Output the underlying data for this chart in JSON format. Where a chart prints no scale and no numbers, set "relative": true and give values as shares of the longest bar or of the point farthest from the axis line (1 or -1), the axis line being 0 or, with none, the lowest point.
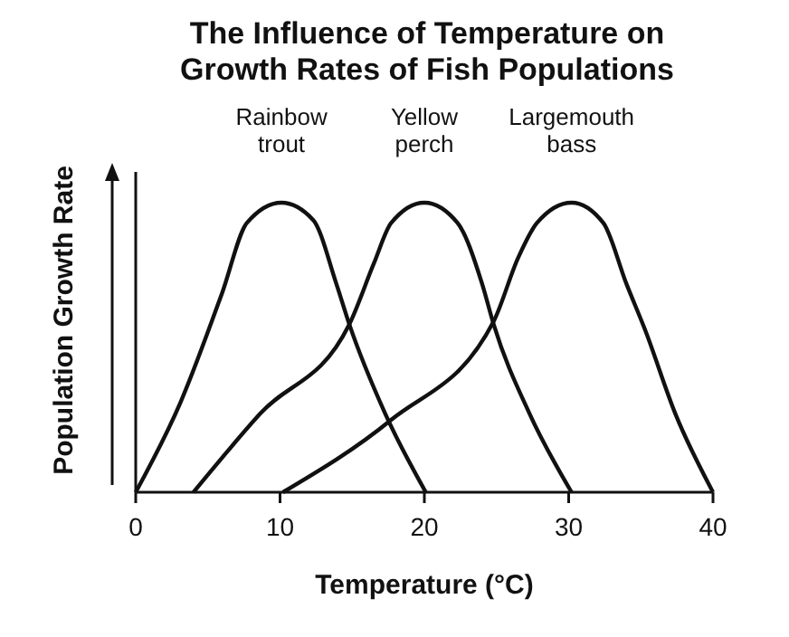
{
  "chart_data": {
    "type": "line",
    "title": "The Influence of Temperature on Growth Rates of Fish Populations",
    "xlabel": "Temperature (°C)",
    "ylabel": "Population Growth Rate",
    "relative": true,
    "xlim": [
      0,
      40
    ],
    "xticks": [
      0,
      10,
      20,
      30,
      40
    ],
    "grid": false,
    "marker": "none",
    "line_style": "solid",
    "color": "#111111",
    "series": [
      {
        "name": "Rainbow trout",
        "x": [
          0,
          3.1,
          6,
          7.7,
          10.1,
          12.3,
          13.9,
          14.8,
          17.3,
          20.1
        ],
        "values": [
          0,
          0.31,
          0.69,
          0.93,
          1,
          0.94,
          0.72,
          0.58,
          0.27,
          0
        ]
      },
      {
        "name": "Yellow perch",
        "x": [
          4,
          8.6,
          14.8,
          16.5,
          17.7,
          20,
          22.3,
          24,
          24.8,
          27.3,
          30.2
        ],
        "values": [
          0,
          0.27,
          0.58,
          0.79,
          0.93,
          1,
          0.93,
          0.72,
          0.58,
          0.27,
          0
        ]
      },
      {
        "name": "Largemouth bass",
        "x": [
          10.2,
          17.7,
          24.8,
          26.5,
          27.8,
          30.2,
          32.4,
          34,
          35.3,
          37.4,
          40
        ],
        "values": [
          0,
          0.25,
          0.59,
          0.81,
          0.93,
          1,
          0.93,
          0.72,
          0.56,
          0.27,
          0
        ]
      }
    ]
  }
}
